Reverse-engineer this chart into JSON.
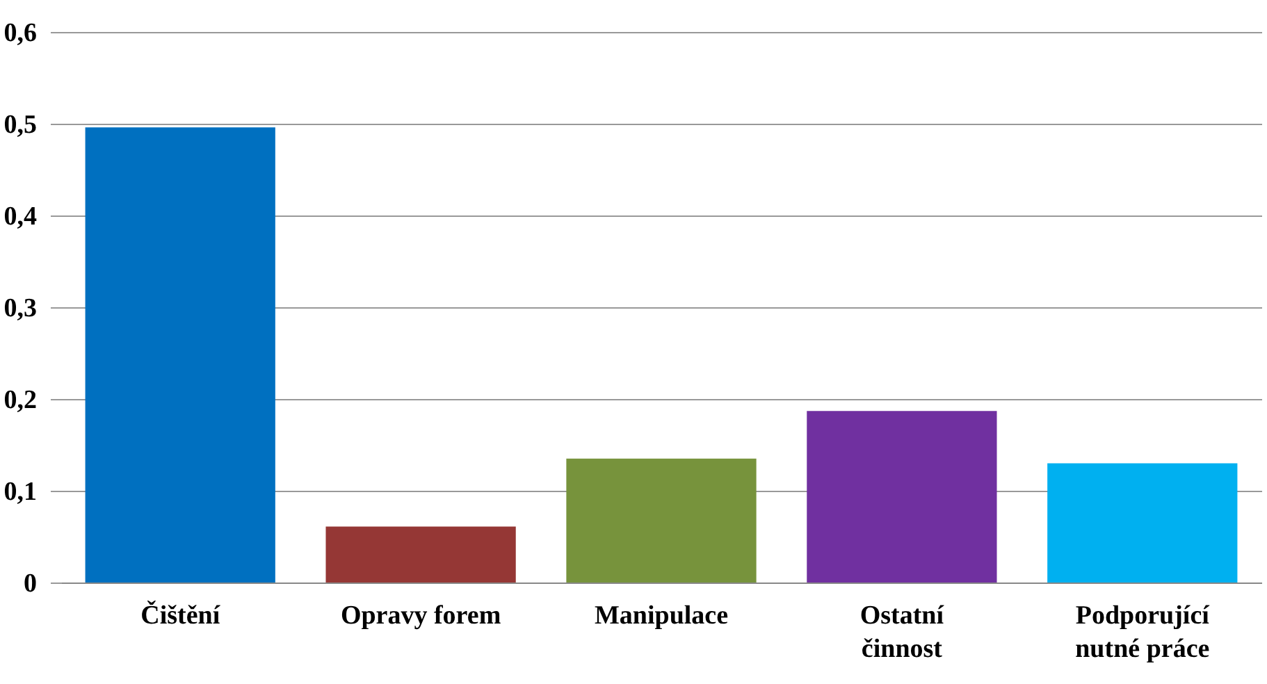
{
  "chart_data": {
    "type": "bar",
    "categories": [
      "Čištění",
      "Opravy forem",
      "Manipulace",
      "Ostatní\nčinnost",
      "Podporující\nnutné práce"
    ],
    "values": [
      0.496,
      0.061,
      0.135,
      0.187,
      0.13
    ],
    "colors": [
      "#0070c0",
      "#953735",
      "#77933c",
      "#7030a0",
      "#00b0f0"
    ],
    "ylim": [
      0,
      0.6
    ],
    "yticks": [
      {
        "value": 0,
        "label": "0"
      },
      {
        "value": 0.1,
        "label": "0,1"
      },
      {
        "value": 0.2,
        "label": "0,2"
      },
      {
        "value": 0.3,
        "label": "0,3"
      },
      {
        "value": 0.4,
        "label": "0,4"
      },
      {
        "value": 0.5,
        "label": "0,5"
      },
      {
        "value": 0.6,
        "label": "0,6"
      }
    ],
    "grid": "y"
  }
}
